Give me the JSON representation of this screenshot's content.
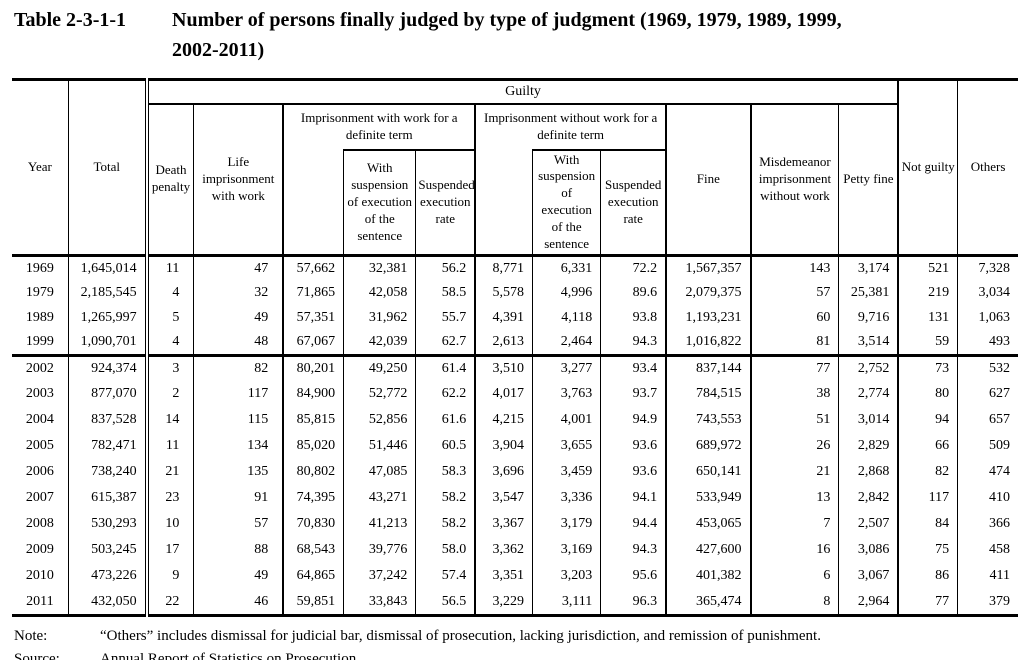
{
  "title": {
    "label": "Table 2-3-1-1",
    "line1": "Number of persons finally judged by type of judgment (1969, 1979, 1989, 1999,",
    "line2": "2002-2011)"
  },
  "table": {
    "headers": {
      "year": "Year",
      "total": "Total",
      "guilty": "Guilty",
      "death_penalty": "Death penalty",
      "life_imprisonment": "Life imprisonment with work",
      "impr_with_work": "Imprisonment with work for a definite term",
      "impr_without_work": "Imprisonment without work for a definite term",
      "with_suspension": "With suspension of execution of the sentence",
      "suspended_rate": "Suspended execution rate",
      "fine": "Fine",
      "misdemeanor": "Misdemeanor imprisonment without work",
      "petty_fine": "Petty fine",
      "not_guilty": "Not guilty",
      "others": "Others"
    },
    "columns_order": [
      "year",
      "total",
      "death_penalty",
      "life_imprisonment",
      "impr_with_work_total",
      "with_suspension",
      "suspended_rate",
      "impr_without_work_total",
      "with_suspension",
      "suspended_rate",
      "fine",
      "misdemeanor",
      "petty_fine",
      "not_guilty",
      "others"
    ],
    "rows_block1": [
      [
        "1969",
        "1,645,014",
        "11",
        "47",
        "57,662",
        "32,381",
        "56.2",
        "8,771",
        "6,331",
        "72.2",
        "1,567,357",
        "143",
        "3,174",
        "521",
        "7,328"
      ],
      [
        "1979",
        "2,185,545",
        "4",
        "32",
        "71,865",
        "42,058",
        "58.5",
        "5,578",
        "4,996",
        "89.6",
        "2,079,375",
        "57",
        "25,381",
        "219",
        "3,034"
      ],
      [
        "1989",
        "1,265,997",
        "5",
        "49",
        "57,351",
        "31,962",
        "55.7",
        "4,391",
        "4,118",
        "93.8",
        "1,193,231",
        "60",
        "9,716",
        "131",
        "1,063"
      ],
      [
        "1999",
        "1,090,701",
        "4",
        "48",
        "67,067",
        "42,039",
        "62.7",
        "2,613",
        "2,464",
        "94.3",
        "1,016,822",
        "81",
        "3,514",
        "59",
        "493"
      ]
    ],
    "rows_block2": [
      [
        "2002",
        "924,374",
        "3",
        "82",
        "80,201",
        "49,250",
        "61.4",
        "3,510",
        "3,277",
        "93.4",
        "837,144",
        "77",
        "2,752",
        "73",
        "532"
      ],
      [
        "2003",
        "877,070",
        "2",
        "117",
        "84,900",
        "52,772",
        "62.2",
        "4,017",
        "3,763",
        "93.7",
        "784,515",
        "38",
        "2,774",
        "80",
        "627"
      ],
      [
        "2004",
        "837,528",
        "14",
        "115",
        "85,815",
        "52,856",
        "61.6",
        "4,215",
        "4,001",
        "94.9",
        "743,553",
        "51",
        "3,014",
        "94",
        "657"
      ],
      [
        "2005",
        "782,471",
        "11",
        "134",
        "85,020",
        "51,446",
        "60.5",
        "3,904",
        "3,655",
        "93.6",
        "689,972",
        "26",
        "2,829",
        "66",
        "509"
      ],
      [
        "2006",
        "738,240",
        "21",
        "135",
        "80,802",
        "47,085",
        "58.3",
        "3,696",
        "3,459",
        "93.6",
        "650,141",
        "21",
        "2,868",
        "82",
        "474"
      ],
      [
        "2007",
        "615,387",
        "23",
        "91",
        "74,395",
        "43,271",
        "58.2",
        "3,547",
        "3,336",
        "94.1",
        "533,949",
        "13",
        "2,842",
        "117",
        "410"
      ],
      [
        "2008",
        "530,293",
        "10",
        "57",
        "70,830",
        "41,213",
        "58.2",
        "3,367",
        "3,179",
        "94.4",
        "453,065",
        "7",
        "2,507",
        "84",
        "366"
      ],
      [
        "2009",
        "503,245",
        "17",
        "88",
        "68,543",
        "39,776",
        "58.0",
        "3,362",
        "3,169",
        "94.3",
        "427,600",
        "16",
        "3,086",
        "75",
        "458"
      ],
      [
        "2010",
        "473,226",
        "9",
        "49",
        "64,865",
        "37,242",
        "57.4",
        "3,351",
        "3,203",
        "95.6",
        "401,382",
        "6",
        "3,067",
        "86",
        "411"
      ],
      [
        "2011",
        "432,050",
        "22",
        "46",
        "59,851",
        "33,843",
        "56.5",
        "3,229",
        "3,111",
        "96.3",
        "365,474",
        "8",
        "2,964",
        "77",
        "379"
      ]
    ]
  },
  "note": {
    "label": "Note:",
    "text": "“Others” includes dismissal for judicial bar, dismissal of prosecution, lacking jurisdiction, and remission of punishment."
  },
  "source": {
    "label": "Source:",
    "text": "Annual Report of Statistics on Prosecution"
  }
}
